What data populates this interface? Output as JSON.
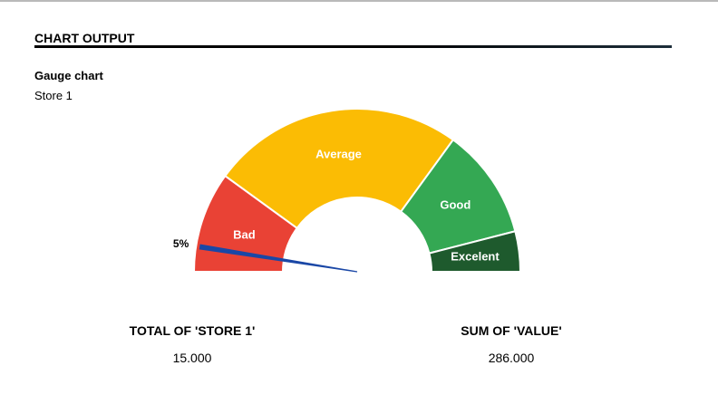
{
  "header": {
    "title": "CHART OUTPUT"
  },
  "chart_data": {
    "type": "gauge",
    "title": "Gauge chart",
    "subtitle": "Store 1",
    "min": 0,
    "max": 100,
    "value": 5,
    "value_label": "5%",
    "bands": [
      {
        "label": "Bad",
        "from": 0,
        "to": 20,
        "color": "#e94235"
      },
      {
        "label": "Average",
        "from": 20,
        "to": 70,
        "color": "#fbbc04"
      },
      {
        "label": "Good",
        "from": 70,
        "to": 92,
        "color": "#34a853"
      },
      {
        "label": "Excelent",
        "from": 92,
        "to": 100,
        "color": "#1e5a2d"
      }
    ],
    "needle_color": "#1a47a6"
  },
  "stats": [
    {
      "label": "TOTAL OF 'STORE 1'",
      "value": "15.000"
    },
    {
      "label": "SUM OF 'VALUE'",
      "value": "286.000"
    }
  ]
}
